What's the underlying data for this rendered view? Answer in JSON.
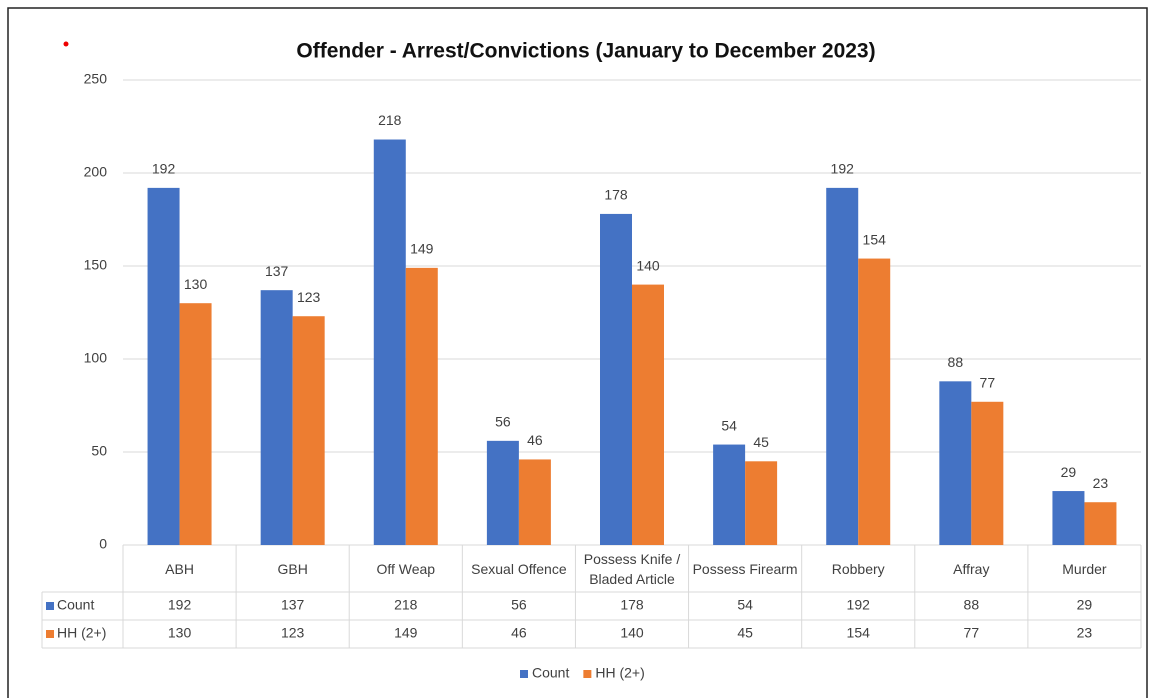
{
  "chart_data": {
    "type": "bar",
    "title": "Offender - Arrest/Convictions (January to December 2023)",
    "categories": [
      "ABH",
      "GBH",
      "Off Weap",
      "Sexual Offence",
      "Possess Knife / Bladed Article",
      "Possess Firearm",
      "Robbery",
      "Affray",
      "Murder"
    ],
    "series": [
      {
        "name": "Count",
        "color": "#4472c4",
        "values": [
          192,
          137,
          218,
          56,
          178,
          54,
          192,
          88,
          29
        ]
      },
      {
        "name": "HH (2+)",
        "color": "#ed7d31",
        "values": [
          130,
          123,
          149,
          46,
          140,
          45,
          154,
          77,
          23
        ]
      }
    ],
    "ylim": [
      0,
      250
    ],
    "yticks": [
      0,
      50,
      100,
      150,
      200,
      250
    ],
    "grid": true,
    "legend": "bottom"
  }
}
